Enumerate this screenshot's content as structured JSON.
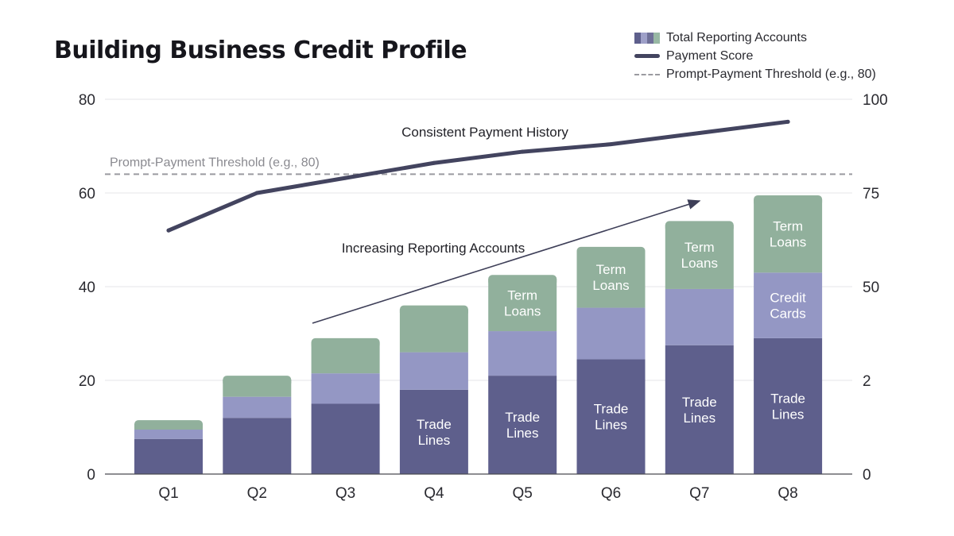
{
  "title": "Building Business Credit Profile",
  "legend": [
    {
      "label": "Total Reporting Accounts",
      "icon": "stacked-bar-swatch"
    },
    {
      "label": "Payment Score",
      "icon": "solid-line-swatch"
    },
    {
      "label": "Prompt-Payment Threshold (e.g., 80)",
      "icon": "dashed-line-swatch"
    }
  ],
  "colors": {
    "trade_lines": "#5e5f8c",
    "credit_cards": "#9497c4",
    "term_loans": "#91b09c",
    "payment_score": "#43445f",
    "threshold": "#9a9aa0",
    "grid": "#e6e6ea"
  },
  "chart_data": {
    "type": "bar",
    "stacked": true,
    "title": "Building Business Credit Profile",
    "categories": [
      "Q1",
      "Q2",
      "Q3",
      "Q4",
      "Q5",
      "Q6",
      "Q7",
      "Q8"
    ],
    "series": [
      {
        "name": "Trade Lines",
        "values": [
          7.5,
          12,
          15,
          18,
          21,
          24.5,
          27.5,
          29
        ]
      },
      {
        "name": "Credit Cards",
        "values": [
          2,
          4.5,
          6.5,
          8,
          9.5,
          11,
          12,
          14
        ]
      },
      {
        "name": "Term Loans",
        "values": [
          2,
          4.5,
          7.5,
          10,
          12,
          13,
          14.5,
          16.5
        ]
      }
    ],
    "segment_labels": [
      [],
      [],
      [],
      [
        "Trade Lines"
      ],
      [
        "Trade Lines",
        "",
        "Term Loans"
      ],
      [
        "Trade Lines",
        "",
        "Term Loans"
      ],
      [
        "Trade Lines",
        "",
        "Term Loans"
      ],
      [
        "Trade Lines",
        "Credit Cards",
        "Term Loans"
      ]
    ],
    "line_series": {
      "name": "Payment Score",
      "axis": "right",
      "values": [
        65,
        75,
        79,
        83,
        86,
        88,
        91,
        94
      ]
    },
    "threshold": {
      "name": "Prompt-Payment Threshold (e.g., 80)",
      "label": "Prompt-Payment Threshold (e.g., 80)",
      "value": 80,
      "axis": "right"
    },
    "left_axis": {
      "ylim": [
        0,
        80
      ],
      "ticks": [
        "0",
        "20",
        "40",
        "60",
        "80"
      ]
    },
    "right_axis": {
      "ticks": [
        "0",
        "2",
        "50",
        "75",
        "100"
      ]
    },
    "annotations": {
      "payment": "Consistent Payment History",
      "accounts": "Increasing Reporting Accounts"
    },
    "grid": true,
    "legend_position": "top-right"
  }
}
